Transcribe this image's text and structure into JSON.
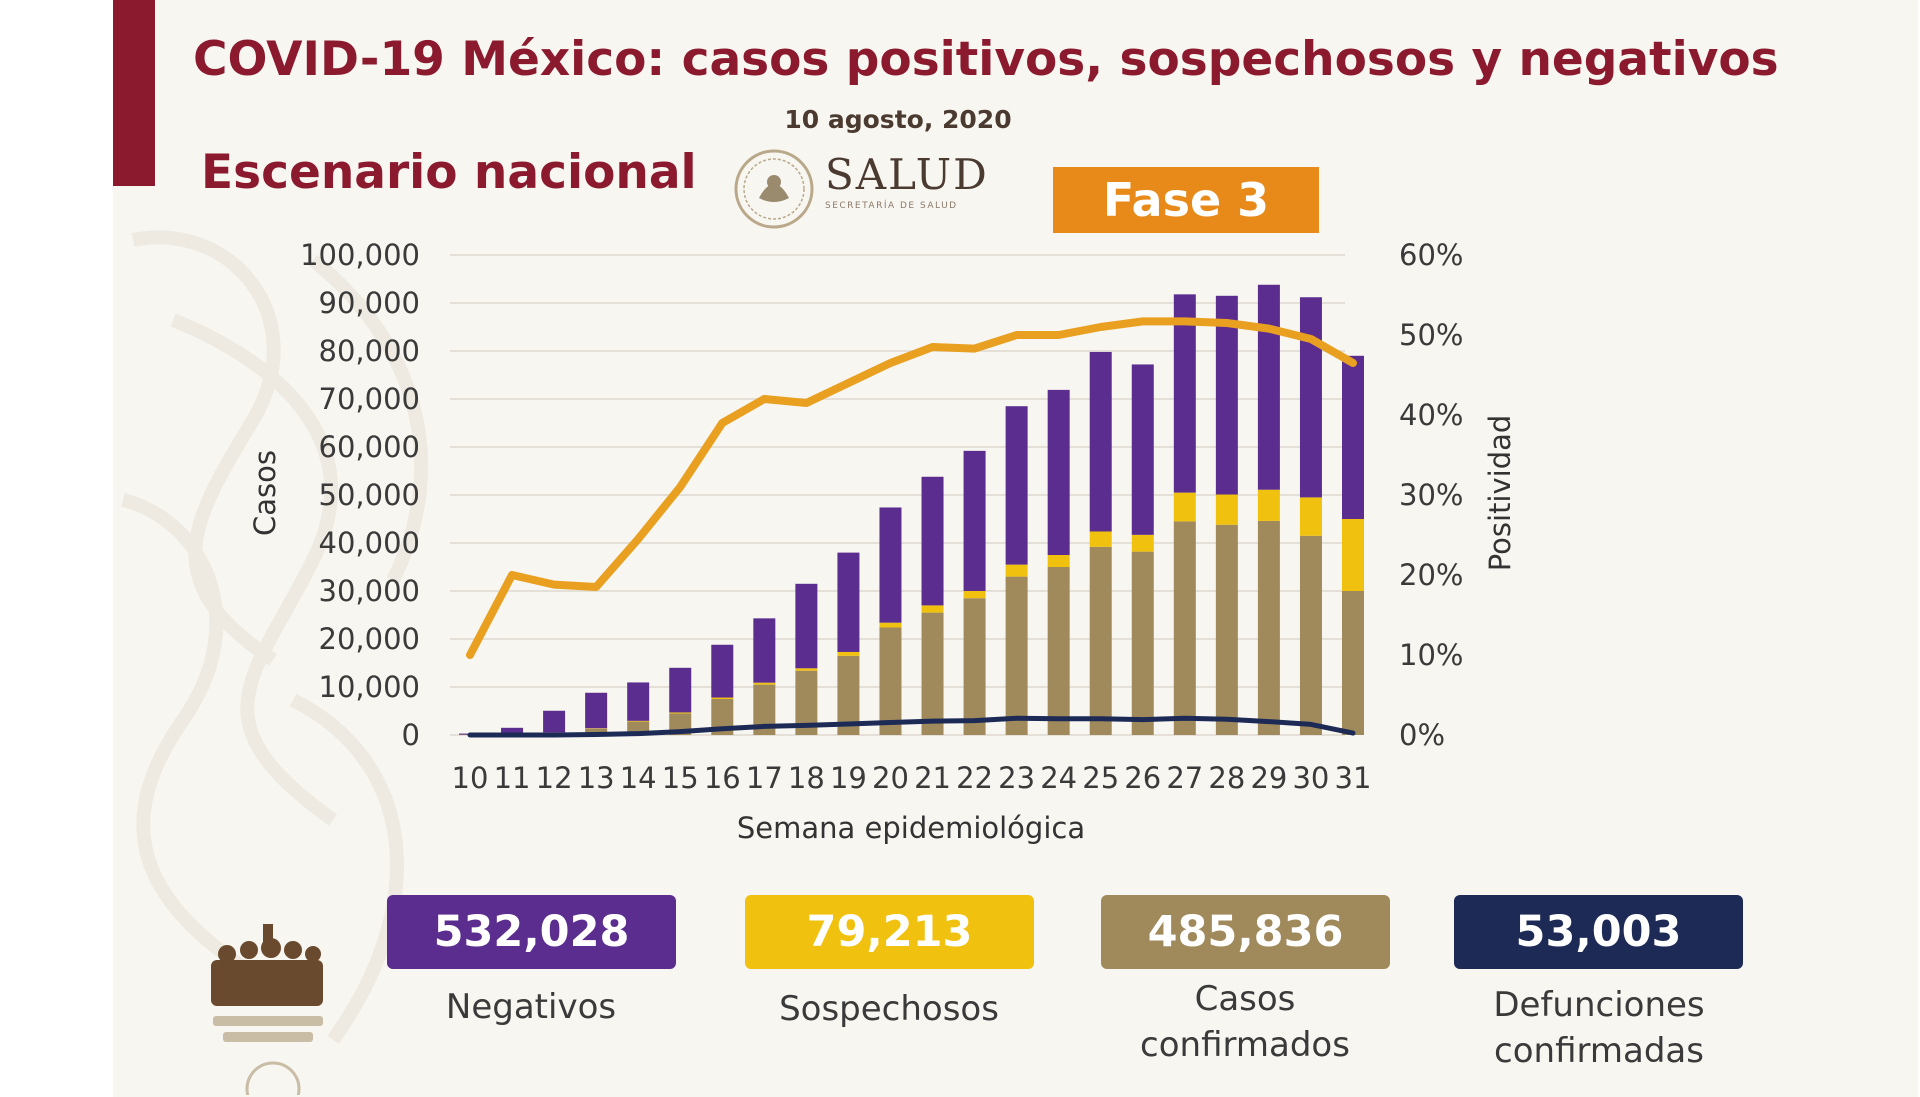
{
  "title": "COVID-19 México: casos positivos, sospechosos y negativos",
  "date": "10 agosto, 2020",
  "subtitle": "Escenario nacional",
  "logo": {
    "name": "SALUD",
    "sub": "SECRETARÍA DE SALUD"
  },
  "phase": "Fase 3",
  "colors": {
    "negativos": "#5b2d8e",
    "sospechosos": "#f1c10f",
    "confirmados": "#a08a5c",
    "defunciones": "#1c2a55",
    "positividad": "#e9a020",
    "title": "#8b1a2e"
  },
  "chart_data": {
    "type": "bar",
    "stacked": true,
    "xlabel": "Semana epidemiológica",
    "ylabel": "Casos",
    "y2label": "Positividad",
    "ylim": [
      0,
      100000
    ],
    "y2lim": [
      0,
      60
    ],
    "yticks": [
      "0",
      "10,000",
      "20,000",
      "30,000",
      "40,000",
      "50,000",
      "60,000",
      "70,000",
      "80,000",
      "90,000",
      "100,000"
    ],
    "y2ticks": [
      "0%",
      "10%",
      "20%",
      "30%",
      "40%",
      "50%",
      "60%"
    ],
    "grid": true,
    "categories": [
      "10",
      "11",
      "12",
      "13",
      "14",
      "15",
      "16",
      "17",
      "18",
      "19",
      "20",
      "21",
      "22",
      "23",
      "24",
      "25",
      "26",
      "27",
      "28",
      "29",
      "30",
      "31"
    ],
    "series": [
      {
        "key": "confirmados",
        "values": [
          100,
          300,
          500,
          1300,
          2800,
          4500,
          7500,
          10500,
          13400,
          16500,
          22400,
          25500,
          28500,
          33000,
          35000,
          39200,
          38200,
          44500,
          43800,
          44600,
          41500,
          30000
        ]
      },
      {
        "key": "sospechosos",
        "values": [
          0,
          0,
          50,
          100,
          150,
          200,
          300,
          400,
          500,
          800,
          1000,
          1500,
          1500,
          2500,
          2500,
          3200,
          3500,
          6000,
          6300,
          6500,
          8000,
          15000
        ]
      },
      {
        "key": "negativos",
        "values": [
          200,
          1200,
          4500,
          7400,
          8000,
          9300,
          11000,
          13400,
          17600,
          20700,
          24000,
          26800,
          29200,
          33000,
          34400,
          37400,
          35500,
          41300,
          41400,
          42700,
          41700,
          34000
        ]
      },
      {
        "key": "defunciones",
        "type": "line",
        "values": [
          0,
          0,
          0,
          100,
          300,
          700,
          1300,
          1800,
          2000,
          2300,
          2600,
          2900,
          3000,
          3500,
          3400,
          3400,
          3200,
          3500,
          3300,
          2800,
          2200,
          400
        ]
      },
      {
        "key": "positividad",
        "type": "line",
        "axis": "y2",
        "values": [
          10,
          20,
          18.8,
          18.5,
          24.5,
          31,
          39,
          42,
          41.5,
          44,
          46.5,
          48.5,
          48.3,
          50,
          50,
          51,
          51.7,
          51.7,
          51.5,
          50.8,
          49.5,
          46.5
        ]
      }
    ]
  },
  "stats": [
    {
      "value": "532,028",
      "label": "Negativos"
    },
    {
      "value": "79,213",
      "label": "Sospechosos"
    },
    {
      "value": "485,836",
      "label": "Casos confirmados"
    },
    {
      "value": "53,003",
      "label": "Defunciones confirmadas"
    }
  ]
}
